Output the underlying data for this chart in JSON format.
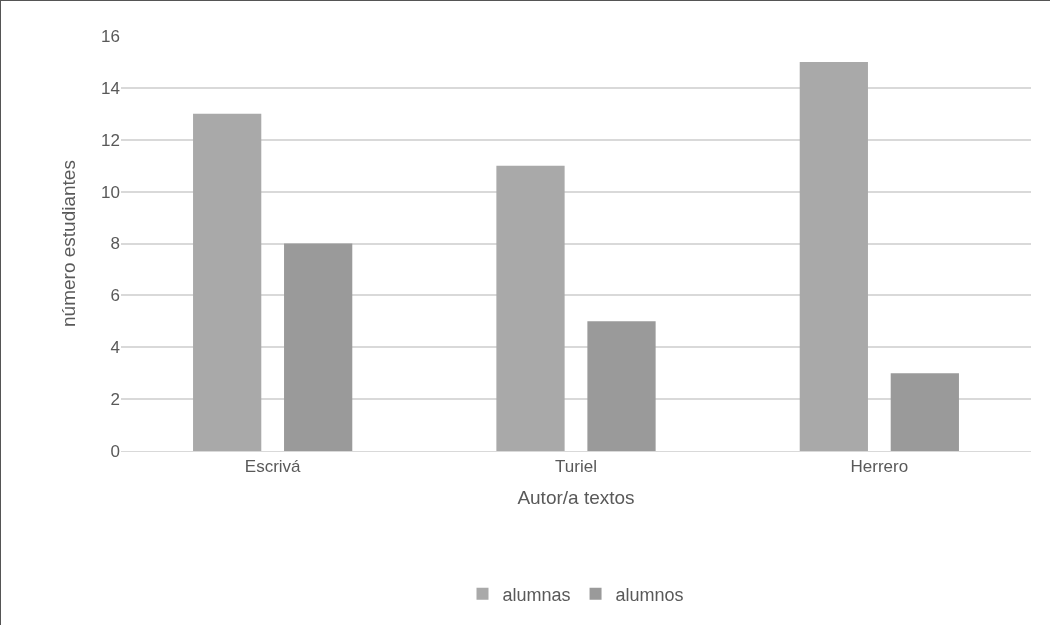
{
  "chart_data": {
    "type": "bar",
    "xlabel": "Autor/a textos",
    "ylabel": "número estudiantes",
    "categories": [
      "Escrivá",
      "Turiel",
      "Herrero"
    ],
    "series": [
      {
        "name": "alumnas",
        "color": "#a9a9a9",
        "values": [
          13,
          11,
          15
        ]
      },
      {
        "name": "alumnos",
        "color": "#9a9a9a",
        "values": [
          8,
          5,
          3
        ]
      }
    ],
    "ylim": [
      0,
      16
    ],
    "yticks": [
      0,
      2,
      4,
      6,
      8,
      10,
      12,
      14,
      16
    ],
    "grid": "y",
    "legend": "bottom"
  }
}
